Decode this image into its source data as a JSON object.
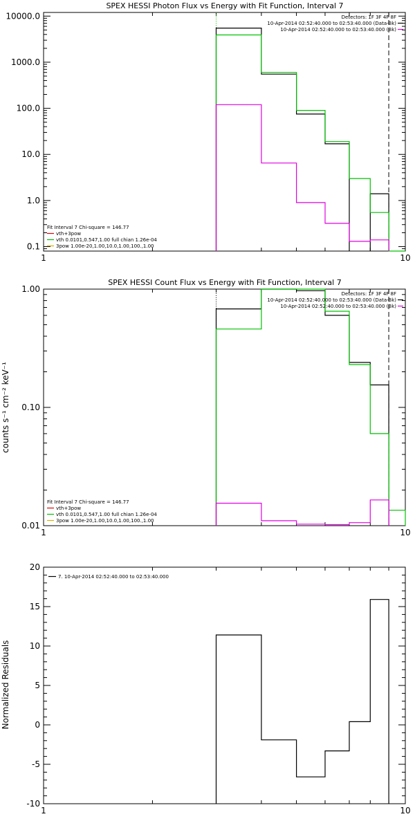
{
  "chart_data": [
    {
      "type": "line",
      "title": "SPEX HESSI Photon Flux vs Energy with Fit Function, Interval 7",
      "xlabel": "",
      "ylabel": "",
      "xscale": "log",
      "yscale": "log",
      "xlim": [
        1,
        10
      ],
      "ylim": [
        0.08,
        12000
      ],
      "xticks": [
        1,
        10
      ],
      "xtick_labels": [
        "1",
        "10"
      ],
      "yticks": [
        0.1,
        1,
        10,
        100,
        1000,
        10000
      ],
      "ytick_labels": [
        "0.1",
        "1.0",
        "10.0",
        "100.0",
        "1000.0",
        "10000.0"
      ],
      "energy_bins": [
        3,
        4,
        5,
        6,
        7,
        8,
        9,
        10
      ],
      "vlines": [
        {
          "x": 3,
          "style": "dotted",
          "color": "#00c000"
        },
        {
          "x": 9,
          "style": "dashed",
          "color": "#000000"
        }
      ],
      "series": [
        {
          "color": "#000000",
          "values": [
            5500,
            550,
            75,
            17,
            null,
            1.4,
            null
          ]
        },
        {
          "color": "#00c000",
          "values": [
            3900,
            600,
            90,
            19,
            3.0,
            0.55,
            0.08
          ]
        },
        {
          "color": "#e000e0",
          "values": [
            120,
            6.5,
            0.9,
            0.32,
            0.13,
            0.14,
            null
          ]
        }
      ],
      "legend_top_right": [
        {
          "text": "Detectors: 1F 3F 4F 8F",
          "color": null
        },
        {
          "text": "10-Apr-2014 02:52:40.000 to 02:53:40.000 (Data-Bk)",
          "color": "#000000"
        },
        {
          "text": "10-Apr-2014 02:52:40.000 to 02:53:40.000 (Bk)",
          "color": "#e000e0"
        }
      ],
      "legend_bottom_left": [
        {
          "text": "Fit Interval  7    Chi-square = 146.77",
          "color": null
        },
        {
          "text": "vth+3pow",
          "color": "#e00000"
        },
        {
          "text": "vth 0.0101,0.547,1.00   full chian 1.26e-04",
          "color": "#00c000"
        },
        {
          "text": "3pow 1.00e-20,1.00,10.0,1.00,100.,1.00",
          "color": "#d8b000"
        }
      ]
    },
    {
      "type": "line",
      "title": "SPEX HESSI Count Flux vs Energy with Fit Function, Interval 7",
      "xlabel": "",
      "ylabel": "counts s⁻¹ cm⁻² keV⁻¹",
      "xscale": "log",
      "yscale": "log",
      "xlim": [
        1,
        10
      ],
      "ylim": [
        0.01,
        1.0
      ],
      "xticks": [
        1,
        10
      ],
      "xtick_labels": [
        "1",
        "10"
      ],
      "yticks": [
        0.01,
        0.1,
        1.0
      ],
      "ytick_labels": [
        "0.01",
        "0.10",
        "1.00"
      ],
      "energy_bins": [
        3,
        4,
        5,
        6,
        7,
        8,
        9,
        10
      ],
      "vlines": [
        {
          "x": 3,
          "style": "dotted",
          "color": "#000000"
        },
        {
          "x": 9,
          "style": "dashed",
          "color": "#000000"
        }
      ],
      "series": [
        {
          "color": "#000000",
          "values": [
            0.68,
            1.03,
            0.97,
            0.6,
            0.24,
            0.155,
            null
          ]
        },
        {
          "color": "#00c000",
          "values": [
            0.46,
            1.03,
            1.0,
            0.65,
            0.23,
            0.06,
            0.0135
          ]
        },
        {
          "color": "#e000e0",
          "values": [
            0.0155,
            0.011,
            0.0103,
            0.0102,
            0.0106,
            0.0165,
            null
          ]
        }
      ],
      "legend_top_right": [
        {
          "text": "Detectors: 1F 3F 4F 8F",
          "color": null
        },
        {
          "text": "10-Apr-2014 02:52:40.000 to 02:53:40.000 (Data-Bk)",
          "color": "#000000"
        },
        {
          "text": "10-Apr-2014 02:52:40.000 to 02:53:40.000 (Bk)",
          "color": "#e000e0"
        }
      ],
      "legend_bottom_left": [
        {
          "text": "Fit Interval  7    Chi-square = 146.77",
          "color": null
        },
        {
          "text": "vth+3pow",
          "color": "#e00000"
        },
        {
          "text": "vth 0.0101,0.547,1.00   full chian 1.26e-04",
          "color": "#00c000"
        },
        {
          "text": "3pow 1.00e-20,1.00,10.0,1.00,100.,1.00",
          "color": "#d8b000"
        }
      ]
    },
    {
      "type": "line",
      "title": "",
      "xlabel": "",
      "ylabel": "Normalized Residuals",
      "xscale": "log",
      "yscale": "linear",
      "xlim": [
        1,
        10
      ],
      "ylim": [
        -10,
        20
      ],
      "xticks": [
        1,
        10
      ],
      "xtick_labels": [
        "1",
        "10"
      ],
      "yticks": [
        -10,
        -5,
        0,
        5,
        10,
        15,
        20
      ],
      "ytick_labels": [
        "-10",
        "-5",
        "0",
        "5",
        "10",
        "15",
        "20"
      ],
      "energy_bins": [
        3,
        4,
        5,
        6,
        7,
        8,
        9
      ],
      "vlines": [],
      "series": [
        {
          "color": "#000000",
          "values": [
            11.4,
            -1.9,
            -6.6,
            -3.3,
            0.4,
            15.9
          ]
        }
      ],
      "legend_top_left": [
        {
          "text": "7. 10-Apr-2014 02:52:40.000 to 02:53:40.000",
          "color": "#000000"
        }
      ]
    }
  ]
}
